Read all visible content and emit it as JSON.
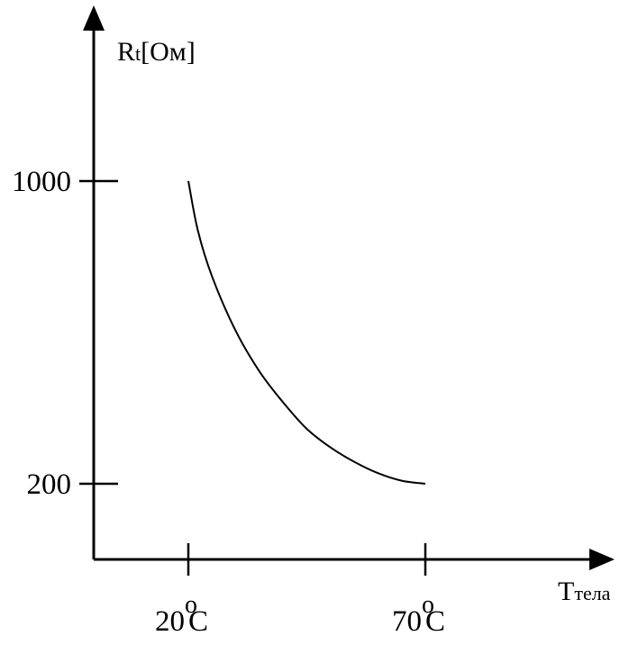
{
  "chart_data": {
    "type": "line",
    "ylabel": {
      "main": "R",
      "sub": "t",
      "unit": "[Ом]"
    },
    "xlabel": {
      "main": "T",
      "sub": "тела"
    },
    "y_ticks": [
      {
        "value": 1000,
        "label": "1000"
      },
      {
        "value": 200,
        "label": "200"
      }
    ],
    "x_ticks": [
      {
        "value": 20,
        "number": "20",
        "degree": "o",
        "unit": "C"
      },
      {
        "value": 70,
        "number": "70",
        "degree": "o",
        "unit": "C"
      }
    ],
    "series": [
      {
        "x": [
          20,
          22,
          25,
          30,
          35,
          40,
          45,
          50,
          55,
          60,
          65,
          70
        ],
        "y": [
          1000,
          870,
          748,
          604,
          497,
          415,
          345,
          296,
          258,
          228,
          208,
          200
        ]
      }
    ],
    "grid": false,
    "colors": {
      "line": "#000000",
      "axis": "#000000",
      "background": "#ffffff"
    }
  }
}
